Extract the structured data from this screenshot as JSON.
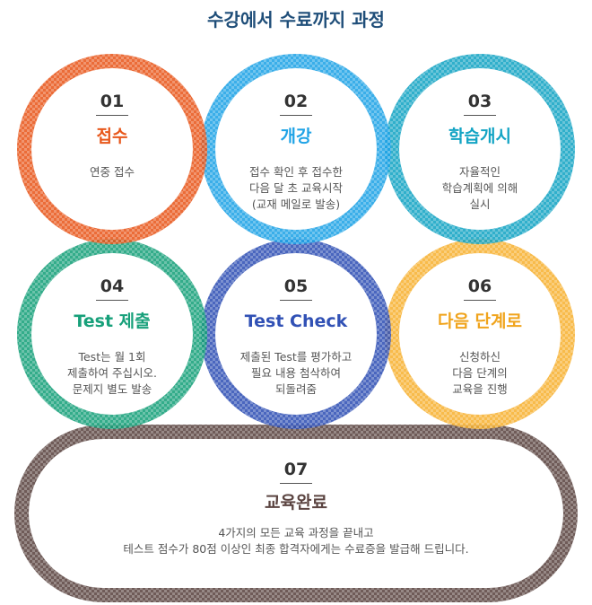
{
  "page": {
    "title": "수강에서 수료까지 과정"
  },
  "colors": {
    "step1": "#e8581c",
    "step2": "#1fa3e6",
    "step3": "#13a4c4",
    "step4": "#17a07a",
    "step5": "#3151b5",
    "step6": "#f7b232",
    "step7": "#5b4441"
  },
  "steps": [
    {
      "num": "01",
      "title": "접수",
      "desc": [
        "연중 접수"
      ]
    },
    {
      "num": "02",
      "title": "개강",
      "desc": [
        "접수 확인 후 접수한",
        "다음 달 초 교육시작",
        "(교재 메일로 발송)"
      ]
    },
    {
      "num": "03",
      "title": "학습개시",
      "desc": [
        "자율적인",
        "학습계획에 의해",
        "실시"
      ]
    },
    {
      "num": "04",
      "title": "Test 제출",
      "desc": [
        "Test는 월 1회",
        "제출하여 주십시오.",
        "문제지 별도 발송"
      ]
    },
    {
      "num": "05",
      "title": "Test Check",
      "desc": [
        "제출된 Test를 평가하고",
        "필요 내용 첨삭하여",
        "되돌려줌"
      ]
    },
    {
      "num": "06",
      "title": "다음 단계로",
      "desc": [
        "신청하신",
        "다음 단계의",
        "교육을 진행"
      ]
    },
    {
      "num": "07",
      "title": "교육완료",
      "desc": [
        "4가지의 모든 교육 과정을 끝내고",
        "테스트 점수가 80점 이상인 최종 합격자에게는 수료증을 발급해 드립니다."
      ]
    }
  ]
}
